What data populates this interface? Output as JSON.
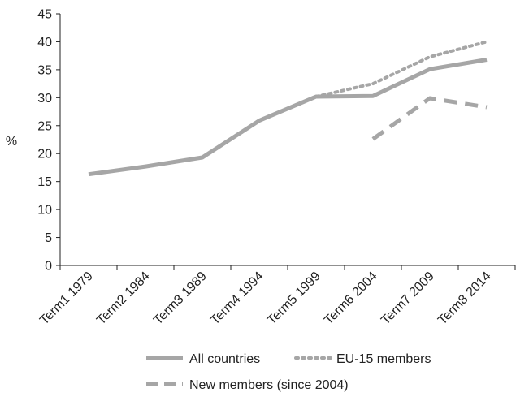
{
  "chart_data": {
    "type": "line",
    "title": "",
    "xlabel": "",
    "ylabel": "%",
    "ylim": [
      0,
      45
    ],
    "y_ticks": [
      0,
      5,
      10,
      15,
      20,
      25,
      30,
      35,
      40,
      45
    ],
    "grid": false,
    "legend_position": "bottom",
    "categories": [
      "Term1 1979",
      "Term2 1984",
      "Term3 1989",
      "Term4 1994",
      "Term5 1999",
      "Term6 2004",
      "Term7 2009",
      "Term8 2014"
    ],
    "series": [
      {
        "name": "All countries",
        "values": [
          16.3,
          17.7,
          19.3,
          25.9,
          30.2,
          30.3,
          35.1,
          36.8
        ],
        "style": "solid",
        "color": "#a6a6a6"
      },
      {
        "name": "EU-15 members",
        "values": [
          null,
          null,
          null,
          null,
          30.2,
          32.5,
          37.3,
          40.0
        ],
        "style": "dotted",
        "color": "#a6a6a6"
      },
      {
        "name": "New members (since 2004)",
        "values": [
          null,
          null,
          null,
          null,
          null,
          22.6,
          29.9,
          28.3
        ],
        "style": "dashed",
        "color": "#a6a6a6"
      }
    ]
  }
}
